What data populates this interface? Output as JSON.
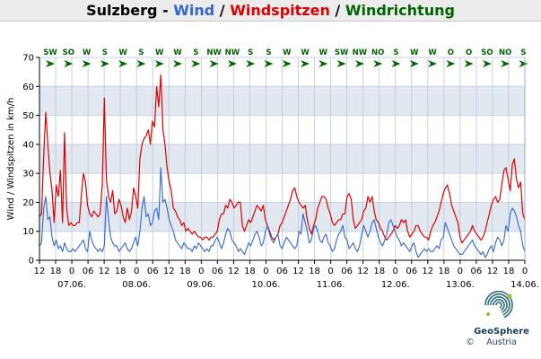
{
  "title": {
    "station": "Sulzberg",
    "sep1": " - ",
    "wind": "Wind",
    "sep2": " / ",
    "gusts": "Windspitzen",
    "sep3": " / ",
    "direction": "Windrichtung"
  },
  "colors": {
    "station": "#000000",
    "wind": "#3366cc",
    "gusts": "#dd0000",
    "direction": "#006400",
    "band_light": "#e2e8f0",
    "band_white": "#ffffff",
    "axis": "#000000",
    "vgrid": "#b8c8dc"
  },
  "branding": {
    "name": "GeoSphere",
    "sub": "Austria",
    "copyright": "©"
  },
  "chart_data": {
    "type": "line",
    "ylabel": "Wind / Windspitzen in km/h",
    "ylim": [
      0,
      70
    ],
    "yticks": [
      0,
      10,
      20,
      30,
      40,
      50,
      60,
      70
    ],
    "grid": true,
    "x_start": "2024-06-06T12:00",
    "x_end": "2024-06-14T00:00",
    "xtick_hour_labels": [
      "12",
      "18",
      "0",
      "06",
      "12",
      "18",
      "0",
      "06",
      "12",
      "18",
      "0",
      "06",
      "12",
      "18",
      "0",
      "06",
      "12",
      "18",
      "0",
      "06",
      "12",
      "18",
      "0",
      "06",
      "12",
      "18",
      "0",
      "06",
      "12",
      "18",
      "0"
    ],
    "date_labels": [
      "07.06.",
      "08.06.",
      "09.06.",
      "10.06.",
      "11.06.",
      "12.06.",
      "13.06.",
      "14.06."
    ],
    "direction_labels": [
      "SW",
      "SO",
      "W",
      "S",
      "W",
      "S",
      "W",
      "W",
      "S",
      "NW",
      "NW",
      "S",
      "S",
      "W",
      "W",
      "W",
      "SW",
      "NW",
      "NO",
      "S",
      "W",
      "W",
      "O",
      "O",
      "SO",
      "NO",
      "S"
    ],
    "direction_arrow_angles": [
      90,
      90,
      90,
      90,
      90,
      90,
      90,
      90,
      90,
      90,
      90,
      90,
      90,
      90,
      90,
      90,
      90,
      90,
      90,
      90,
      90,
      90,
      90,
      90,
      90,
      90,
      90
    ],
    "series": [
      {
        "name": "Wind",
        "sample_interval_hours": 1,
        "values": [
          5,
          6,
          18,
          22,
          14,
          15,
          8,
          5,
          7,
          4,
          5,
          3,
          6,
          4,
          3,
          3,
          4,
          3,
          4,
          5,
          6,
          7,
          4,
          3,
          10,
          7,
          5,
          4,
          3,
          4,
          3,
          5,
          22,
          14,
          8,
          6,
          5,
          5,
          3,
          4,
          5,
          6,
          4,
          3,
          4,
          6,
          8,
          5,
          10,
          18,
          22,
          15,
          16,
          12,
          13,
          17,
          18,
          14,
          32,
          20,
          21,
          18,
          14,
          12,
          10,
          7,
          6,
          5,
          4,
          6,
          5,
          4,
          4,
          3,
          5,
          4,
          6,
          5,
          4,
          3,
          4,
          3,
          5,
          5,
          7,
          8,
          6,
          4,
          6,
          9,
          11,
          10,
          7,
          6,
          5,
          3,
          4,
          3,
          2,
          4,
          6,
          5,
          7,
          9,
          10,
          8,
          5,
          6,
          10,
          12,
          9,
          7,
          6,
          8,
          9,
          5,
          4,
          6,
          8,
          7,
          6,
          5,
          4,
          5,
          10,
          9,
          16,
          13,
          10,
          6,
          7,
          11,
          12,
          10,
          7,
          6,
          8,
          9,
          6,
          5,
          3,
          4,
          7,
          9,
          10,
          12,
          8,
          7,
          4,
          5,
          6,
          4,
          3,
          5,
          9,
          12,
          10,
          8,
          10,
          13,
          14,
          11,
          8,
          6,
          5,
          7,
          9,
          13,
          14,
          12,
          10,
          8,
          7,
          5,
          6,
          5,
          4,
          3,
          5,
          6,
          3,
          1,
          2,
          3,
          4,
          3,
          4,
          3,
          3,
          4,
          5,
          4,
          7,
          8,
          13,
          11,
          9,
          7,
          5,
          4,
          3,
          2,
          2,
          3,
          4,
          5,
          6,
          7,
          5,
          4,
          3,
          2,
          3,
          1,
          2,
          4,
          5,
          3,
          6,
          8,
          7,
          5,
          7,
          12,
          10,
          16,
          18,
          17,
          15,
          12,
          10,
          5,
          3
        ]
      },
      {
        "name": "Windspitzen",
        "sample_interval_hours": 1,
        "values": [
          15,
          16,
          36,
          51,
          40,
          30,
          24,
          13,
          26,
          22,
          31,
          13,
          44,
          18,
          12,
          13,
          12,
          12,
          13,
          13,
          22,
          30,
          27,
          19,
          16,
          15,
          17,
          16,
          15,
          16,
          26,
          56,
          28,
          22,
          20,
          24,
          16,
          17,
          21,
          19,
          15,
          13,
          18,
          14,
          17,
          25,
          22,
          18,
          35,
          40,
          42,
          43,
          45,
          40,
          48,
          46,
          60,
          53,
          64,
          45,
          40,
          32,
          27,
          24,
          18,
          17,
          15,
          14,
          12,
          13,
          10,
          11,
          10,
          9,
          10,
          9,
          8,
          8,
          7,
          8,
          8,
          7,
          8,
          8,
          9,
          10,
          14,
          16,
          16,
          19,
          18,
          21,
          20,
          18,
          19,
          20,
          20,
          12,
          10,
          12,
          14,
          13,
          15,
          17,
          19,
          18,
          17,
          19,
          14,
          12,
          10,
          8,
          7,
          8,
          9,
          12,
          13,
          15,
          17,
          19,
          21,
          24,
          25,
          22,
          20,
          19,
          18,
          19,
          14,
          11,
          9,
          12,
          14,
          18,
          20,
          22,
          22,
          21,
          18,
          16,
          13,
          12,
          13,
          14,
          14,
          16,
          16,
          22,
          23,
          21,
          14,
          11,
          12,
          13,
          14,
          17,
          18,
          22,
          20,
          22,
          17,
          14,
          13,
          11,
          10,
          8,
          7,
          8,
          9,
          10,
          12,
          11,
          12,
          14,
          13,
          14,
          10,
          8,
          9,
          10,
          12,
          12,
          10,
          9,
          8,
          8,
          7,
          10,
          12,
          13,
          15,
          17,
          20,
          23,
          25,
          26,
          23,
          19,
          17,
          15,
          13,
          8,
          6,
          7,
          8,
          9,
          10,
          12,
          10,
          9,
          8,
          7,
          8,
          10,
          13,
          16,
          19,
          21,
          22,
          20,
          21,
          26,
          31,
          32,
          28,
          24,
          33,
          35,
          28,
          25,
          27,
          16,
          14
        ]
      }
    ]
  }
}
